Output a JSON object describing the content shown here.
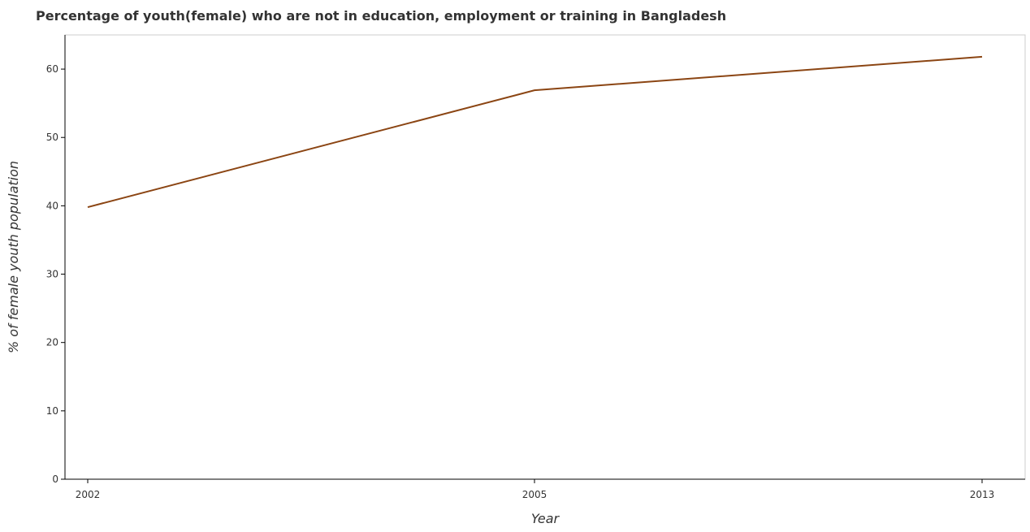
{
  "chart_data": {
    "type": "line",
    "title": "Percentage of youth(female) who are not in education, employment or training in Bangladesh",
    "xlabel": "Year",
    "ylabel": "% of female youth population",
    "categories": [
      "2002",
      "2005",
      "2013"
    ],
    "series": [
      {
        "values": [
          39.8,
          56.9,
          61.8
        ],
        "color": "#8B4513"
      }
    ],
    "ylim": [
      0,
      65
    ],
    "yticks": [
      0,
      10,
      20,
      30,
      40,
      50,
      60
    ],
    "grid": false,
    "legend": "none"
  }
}
